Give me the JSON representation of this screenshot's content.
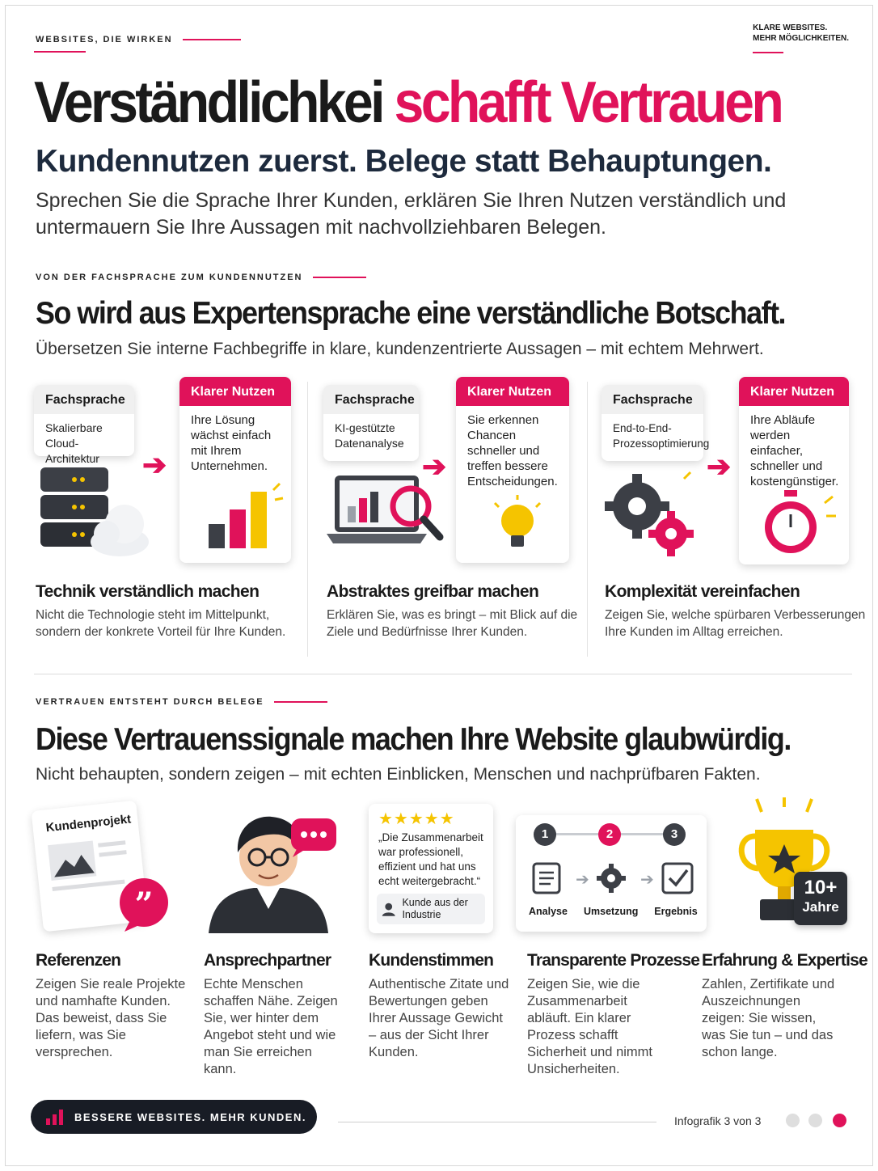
{
  "header": {
    "eyebrow": "WEBSITES, DIE WIRKEN",
    "brand_line1": "KLARE WEBSITES.",
    "brand_line2": "MEHR MÖGLICHKEITEN."
  },
  "hero": {
    "title_dark": "Verständlichkei",
    "title_pink": "schafft Vertrauen",
    "subtitle": "Kundennutzen zuerst. Belege statt Behauptungen.",
    "lead": "Sprechen Sie die Sprache Ihrer Kunden, erklären Sie Ihren Nutzen verständlich und untermauern Sie Ihre Aussagen mit nachvollziehbaren Belegen."
  },
  "section1": {
    "eyebrow": "VON DER FACHSPRACHE ZUM KUNDENNUTZEN",
    "title": "So wird aus Expertensprache eine verständliche Botschaft.",
    "lead": "Übersetzen Sie interne Fachbegriffe in klare, kundenzentrierte Aussagen – mit echtem Mehrwert.",
    "columns": [
      {
        "tech_label": "Fachsprache",
        "tech_text": "Skalierbare Cloud-Architektur",
        "benefit_label": "Klarer Nutzen",
        "benefit_text": "Ihre Lösung wächst einfach mit Ihrem Unternehmen.",
        "title": "Technik verständlich machen",
        "text": "Nicht die Technologie steht im Mittelpunkt, sondern der konkrete Vorteil für Ihre Kunden."
      },
      {
        "tech_label": "Fachsprache",
        "tech_text": "KI-gestützte Datenanalyse",
        "benefit_label": "Klarer Nutzen",
        "benefit_text": "Sie erkennen Chancen schneller und treffen bessere Entscheidungen.",
        "title": "Abstraktes greifbar machen",
        "text": "Erklären Sie, was es bringt – mit Blick auf die Ziele und Bedürfnisse Ihrer Kunden."
      },
      {
        "tech_label": "Fachsprache",
        "tech_text": "End-to-End-Prozessoptimierung",
        "benefit_label": "Klarer Nutzen",
        "benefit_text": "Ihre Abläufe werden einfacher, schneller und kostengünstiger.",
        "title": "Komplexität vereinfachen",
        "text": "Zeigen Sie, welche spürbaren Verbesserungen Ihre Kunden im Alltag erreichen."
      }
    ]
  },
  "section2": {
    "eyebrow": "VERTRAUEN ENTSTEHT DURCH BELEGE",
    "title": "Diese Vertrauenssignale machen Ihre Website glaubwürdig.",
    "lead": "Nicht behaupten, sondern zeigen – mit echten Einblicken, Menschen und nachprüfbaren Fakten.",
    "signals": [
      {
        "title": "Referenzen",
        "text": "Zeigen Sie reale Projekte und namhafte Kunden. Das beweist, dass Sie liefern, was Sie versprechen.",
        "card_label": "Kundenprojekt"
      },
      {
        "title": "Ansprechpartner",
        "text": "Echte Menschen schaffen Nähe. Zeigen Sie, wer hinter dem Angebot steht und wie man Sie erreichen kann."
      },
      {
        "title": "Kundenstimmen",
        "text": "Authentische Zitate und Bewertungen geben Ihrer Aussage Gewicht – aus der Sicht Ihrer Kunden.",
        "quote": "„Die Zusammenarbeit war professionell, effizient und hat uns echt weitergebracht.“",
        "author": "Kunde aus der Industrie",
        "stars": 5
      },
      {
        "title": "Transparente Prozesse",
        "text": "Zeigen Sie, wie die Zusammenarbeit abläuft. Ein klarer Prozess schafft Sicherheit und nimmt Unsicherheiten.",
        "steps": [
          {
            "num": "1",
            "label": "Analyse"
          },
          {
            "num": "2",
            "label": "Umsetzung"
          },
          {
            "num": "3",
            "label": "Ergebnis"
          }
        ]
      },
      {
        "title": "Erfahrung & Expertise",
        "text": "Zahlen, Zertifikate und Auszeichnungen zeigen: Sie wissen, was Sie tun – und das schon lange.",
        "badge_number": "10+",
        "badge_unit": "Jahre"
      }
    ]
  },
  "footer": {
    "pill": "BESSERE WEBSITES. MEHR KUNDEN.",
    "page": "Infografik 3 von 3"
  },
  "colors": {
    "accent": "#e0125a",
    "dark": "#181c25",
    "gold": "#f5c400"
  }
}
